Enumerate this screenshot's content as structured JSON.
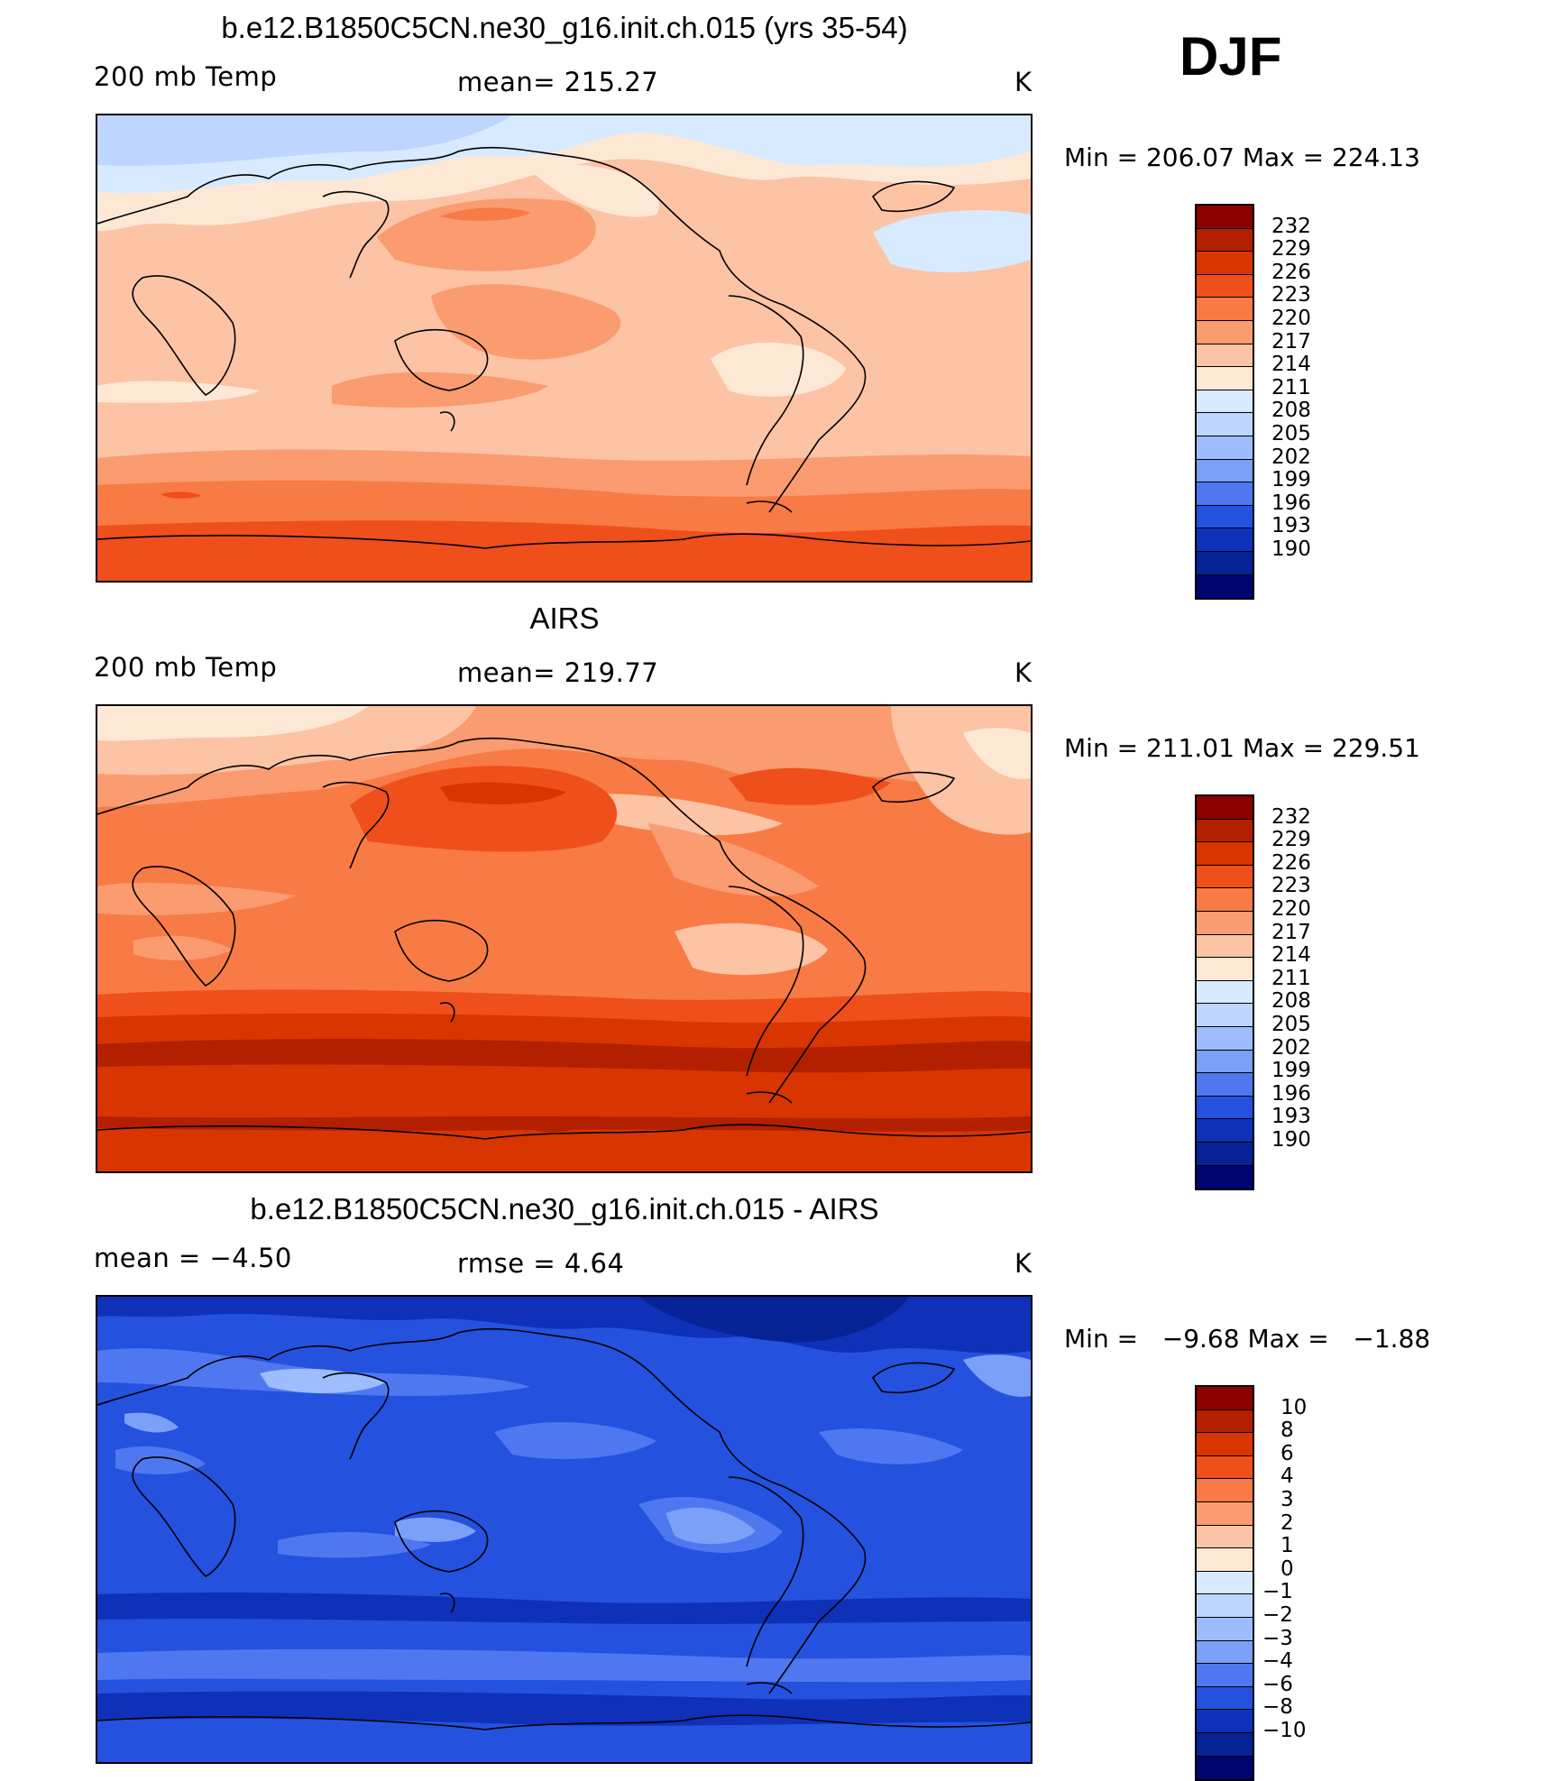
{
  "season": "DJF",
  "panels": [
    {
      "title": "b.e12.B1850C5CN.ne30_g16.init.ch.015 (yrs 35-54)",
      "left_label": "200 mb Temp",
      "mid_label": "mean= 215.27",
      "right_label": "K",
      "minmax": "Min = 206.07 Max = 224.13",
      "colorbar": {
        "labels": [
          "232",
          "229",
          "226",
          "223",
          "220",
          "217",
          "214",
          "211",
          "208",
          "205",
          "202",
          "199",
          "196",
          "193",
          "190"
        ],
        "colors": [
          "#8b0000",
          "#b22000",
          "#d93500",
          "#ef4f1a",
          "#f87a45",
          "#fa9b70",
          "#fcc3a5",
          "#fde8d5",
          "#d7eaff",
          "#bdd5ff",
          "#9ebdff",
          "#7ba0f8",
          "#4f77ef",
          "#2452df",
          "#0e31b8",
          "#072295",
          "#00046e"
        ]
      }
    },
    {
      "title": "AIRS",
      "left_label": "200 mb Temp",
      "mid_label": "mean= 219.77",
      "right_label": "K",
      "minmax": "Min = 211.01 Max = 229.51",
      "colorbar": {
        "labels": [
          "232",
          "229",
          "226",
          "223",
          "220",
          "217",
          "214",
          "211",
          "208",
          "205",
          "202",
          "199",
          "196",
          "193",
          "190"
        ],
        "colors": [
          "#8b0000",
          "#b22000",
          "#d93500",
          "#ef4f1a",
          "#f87a45",
          "#fa9b70",
          "#fcc3a5",
          "#fde8d5",
          "#d7eaff",
          "#bdd5ff",
          "#9ebdff",
          "#7ba0f8",
          "#4f77ef",
          "#2452df",
          "#0e31b8",
          "#072295",
          "#00046e"
        ]
      }
    },
    {
      "title": "b.e12.B1850C5CN.ne30_g16.init.ch.015 - AIRS",
      "left_label": "mean =   −4.50",
      "mid_label": "rmse =    4.64",
      "right_label": "K",
      "minmax": "Min =   −9.68 Max =   −1.88",
      "colorbar": {
        "labels": [
          "10",
          "8",
          "6",
          "4",
          "3",
          "2",
          "1",
          "0",
          "−1",
          "−2",
          "−3",
          "−4",
          "−6",
          "−8",
          "−10"
        ],
        "colors": [
          "#8b0000",
          "#b22000",
          "#d93500",
          "#ef4f1a",
          "#f87a45",
          "#fa9b70",
          "#fcc3a5",
          "#fde8d5",
          "#d7eaff",
          "#bdd5ff",
          "#9ebdff",
          "#7ba0f8",
          "#4f77ef",
          "#2452df",
          "#0e31b8",
          "#072295",
          "#00046e"
        ]
      }
    }
  ]
}
